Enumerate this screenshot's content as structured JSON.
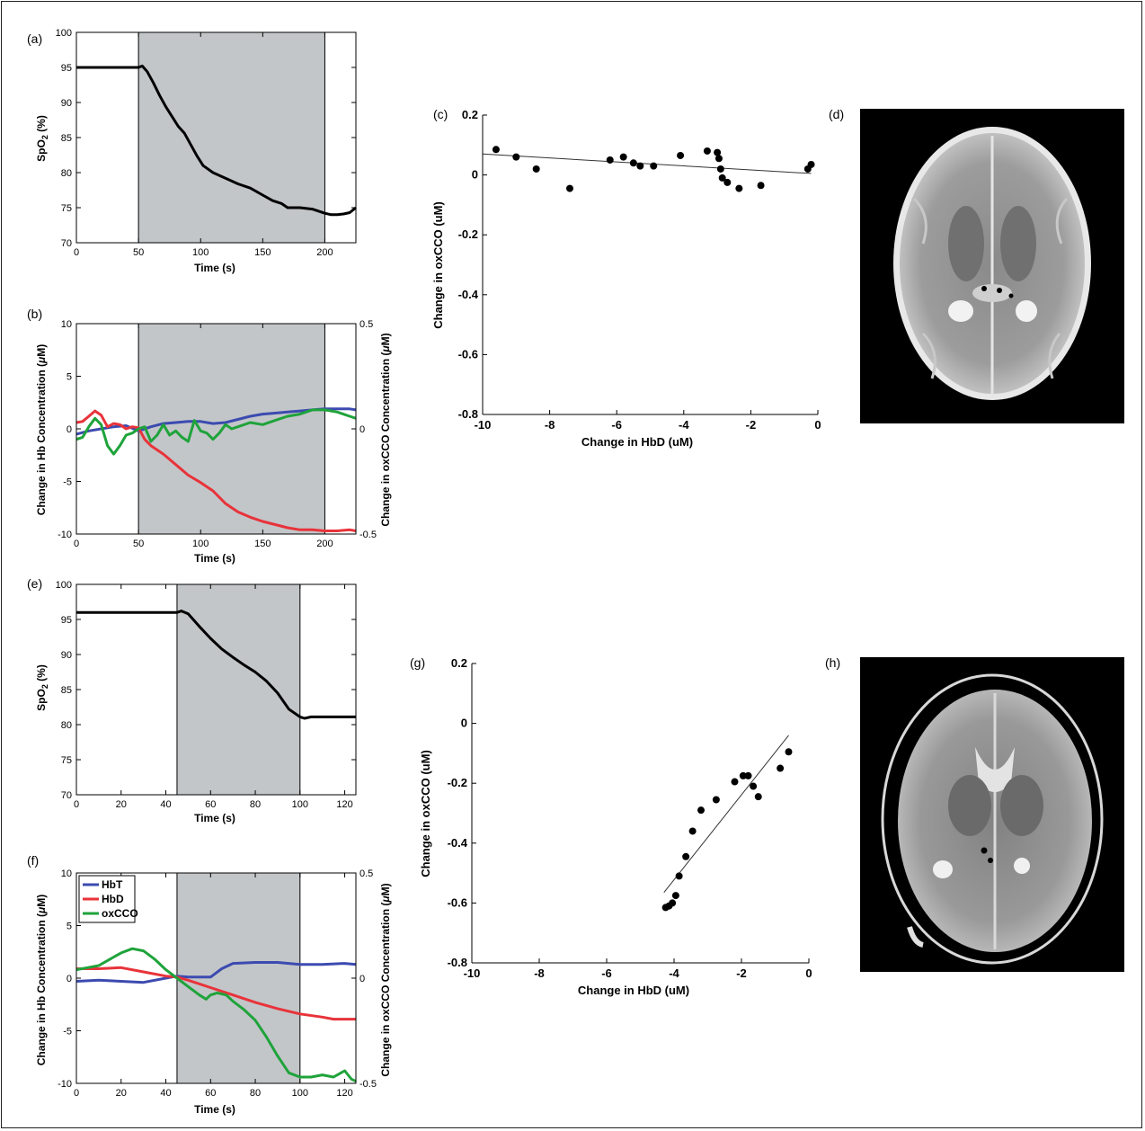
{
  "panels": {
    "a": {
      "letter": "(a)",
      "xlabel": "Time (s)",
      "ylabel_main": "SpO",
      "ylabel_sub": "2",
      "ylabel_tail": " (%)"
    },
    "b": {
      "letter": "(b)",
      "xlabel": "Time (s)",
      "ylabel_left": "Change in Hb Concentration (",
      "ylabel_left_mu": "μ",
      "ylabel_left_tail": "M)",
      "ylabel_right": "Change in oxCCO Concentration (",
      "ylabel_right_mu": "μ",
      "ylabel_right_tail": "M)"
    },
    "c": {
      "letter": "(c)",
      "xlabel": "Change in HbD (uM)",
      "ylabel": "Change in oxCCO (uM)"
    },
    "d": {
      "letter": "(d)"
    },
    "e": {
      "letter": "(e)",
      "xlabel": "Time (s)",
      "ylabel_main": "SpO",
      "ylabel_sub": "2",
      "ylabel_tail": " (%)"
    },
    "f": {
      "letter": "(f)",
      "xlabel": "Time (s)",
      "ylabel_left": "Change in Hb Concentration (",
      "ylabel_left_mu": "μ",
      "ylabel_left_tail": "M)",
      "ylabel_right": "Change in oxCCO Concentration (",
      "ylabel_right_mu": "μ",
      "ylabel_right_tail": "M)"
    },
    "g": {
      "letter": "(g)",
      "xlabel": "Change in HbD (uM)",
      "ylabel": "Change in oxCCO (uM)"
    },
    "h": {
      "letter": "(h)"
    }
  },
  "colors": {
    "HbT": "#3c4bb0",
    "HbD": "#e8333a",
    "oxCCO": "#1fa33b",
    "shade": "#c3c6c9",
    "line": "#000000"
  },
  "chart_data": [
    {
      "id": "a",
      "type": "line",
      "xlim": [
        0,
        225
      ],
      "ylim": [
        70,
        100
      ],
      "xticks": [
        0,
        50,
        100,
        150,
        200
      ],
      "yticks": [
        70,
        75,
        80,
        85,
        90,
        95,
        100
      ],
      "shaded": [
        50,
        200
      ],
      "series": [
        {
          "key": "spo2",
          "color": "#000000",
          "x": [
            0,
            50,
            53,
            57,
            62,
            67,
            72,
            77,
            82,
            87,
            92,
            97,
            102,
            110,
            120,
            130,
            140,
            150,
            158,
            165,
            170,
            180,
            190,
            200,
            205,
            210,
            215,
            220,
            225
          ],
          "y": [
            95,
            95,
            95.2,
            94.4,
            92.8,
            91,
            89.4,
            88,
            86.6,
            85.6,
            84,
            82.4,
            81,
            80,
            79.2,
            78.4,
            77.8,
            76.8,
            76,
            75.6,
            75,
            75,
            74.8,
            74.2,
            74,
            74,
            74.1,
            74.3,
            75
          ]
        }
      ]
    },
    {
      "id": "b",
      "type": "line",
      "xlim": [
        0,
        225
      ],
      "ylim": [
        -10,
        10
      ],
      "y2lim": [
        -0.5,
        0.5
      ],
      "xticks": [
        0,
        50,
        100,
        150,
        200
      ],
      "yticks": [
        -10,
        -5,
        0,
        5,
        10
      ],
      "y2ticks": [
        -0.5,
        0,
        0.5
      ],
      "shaded": [
        50,
        200
      ],
      "series": [
        {
          "key": "HbT",
          "color": "#3c4bb0",
          "x": [
            0,
            10,
            20,
            30,
            40,
            50,
            60,
            70,
            80,
            90,
            100,
            110,
            120,
            130,
            140,
            150,
            160,
            170,
            180,
            190,
            200,
            210,
            220,
            225
          ],
          "y": [
            -0.5,
            -0.2,
            0,
            0.2,
            0.3,
            -0.2,
            0.2,
            0.5,
            0.6,
            0.7,
            0.7,
            0.5,
            0.6,
            0.9,
            1.2,
            1.4,
            1.5,
            1.6,
            1.7,
            1.8,
            1.9,
            1.9,
            1.9,
            1.8
          ]
        },
        {
          "key": "HbD",
          "color": "#e8333a",
          "x": [
            0,
            5,
            10,
            15,
            20,
            25,
            30,
            35,
            40,
            45,
            50,
            55,
            60,
            70,
            80,
            90,
            100,
            110,
            120,
            130,
            140,
            150,
            160,
            170,
            180,
            190,
            200,
            210,
            220,
            225
          ],
          "y": [
            0.6,
            0.7,
            1.2,
            1.7,
            1.3,
            0.2,
            0.5,
            0.4,
            0,
            0.2,
            0.1,
            -1,
            -1.6,
            -2.4,
            -3.4,
            -4.4,
            -5.1,
            -5.9,
            -7.1,
            -7.9,
            -8.4,
            -8.8,
            -9.1,
            -9.4,
            -9.6,
            -9.6,
            -9.7,
            -9.7,
            -9.6,
            -9.7
          ]
        },
        {
          "key": "oxCCO",
          "color": "#1fa33b",
          "x": [
            0,
            5,
            10,
            15,
            20,
            25,
            30,
            35,
            40,
            45,
            50,
            55,
            60,
            65,
            70,
            75,
            80,
            85,
            90,
            95,
            100,
            105,
            110,
            115,
            120,
            125,
            130,
            140,
            150,
            160,
            170,
            180,
            190,
            200,
            210,
            220,
            225
          ],
          "y": [
            -0.05,
            -0.04,
            0.01,
            0.05,
            0.02,
            -0.08,
            -0.12,
            -0.08,
            -0.03,
            -0.02,
            0,
            0.01,
            -0.06,
            -0.03,
            0.02,
            -0.03,
            -0.01,
            -0.04,
            -0.06,
            0.04,
            -0.01,
            -0.02,
            -0.05,
            -0.02,
            0.02,
            0.0,
            0.01,
            0.03,
            0.02,
            0.04,
            0.06,
            0.07,
            0.09,
            0.09,
            0.08,
            0.06,
            0.05
          ]
        }
      ]
    },
    {
      "id": "c",
      "type": "scatter",
      "xlim": [
        -10,
        0
      ],
      "ylim": [
        -0.8,
        0.2
      ],
      "xticks": [
        -10,
        -8,
        -6,
        -4,
        -2,
        0
      ],
      "yticks": [
        -0.8,
        -0.6,
        -0.4,
        -0.2,
        0,
        0.2
      ],
      "points": [
        [
          -9.6,
          0.085
        ],
        [
          -9.0,
          0.06
        ],
        [
          -8.4,
          0.02
        ],
        [
          -7.4,
          -0.045
        ],
        [
          -6.2,
          0.05
        ],
        [
          -5.8,
          0.06
        ],
        [
          -5.5,
          0.04
        ],
        [
          -5.3,
          0.03
        ],
        [
          -4.9,
          0.03
        ],
        [
          -4.1,
          0.065
        ],
        [
          -3.3,
          0.08
        ],
        [
          -3.0,
          0.075
        ],
        [
          -2.95,
          0.055
        ],
        [
          -2.9,
          0.02
        ],
        [
          -2.85,
          -0.01
        ],
        [
          -2.7,
          -0.025
        ],
        [
          -2.35,
          -0.045
        ],
        [
          -1.7,
          -0.035
        ],
        [
          -0.3,
          0.02
        ],
        [
          -0.2,
          0.035
        ]
      ],
      "fit": [
        [
          -10,
          0.07
        ],
        [
          -0.2,
          0.005
        ]
      ]
    },
    {
      "id": "e",
      "type": "line",
      "xlim": [
        0,
        125
      ],
      "ylim": [
        70,
        100
      ],
      "xticks": [
        0,
        20,
        40,
        60,
        80,
        100,
        120
      ],
      "yticks": [
        70,
        75,
        80,
        85,
        90,
        95,
        100
      ],
      "shaded": [
        45,
        100
      ],
      "series": [
        {
          "key": "spo2",
          "color": "#000000",
          "x": [
            0,
            45,
            47,
            50,
            55,
            60,
            65,
            70,
            75,
            80,
            85,
            90,
            95,
            100,
            102,
            105,
            110,
            115,
            120,
            125
          ],
          "y": [
            96,
            96,
            96.2,
            95.8,
            94,
            92.3,
            90.8,
            89.6,
            88.5,
            87.5,
            86.2,
            84.5,
            82.2,
            81.1,
            80.9,
            81.1,
            81.1,
            81.1,
            81.1,
            81.1
          ]
        }
      ]
    },
    {
      "id": "f",
      "type": "line",
      "xlim": [
        0,
        125
      ],
      "ylim": [
        -10,
        10
      ],
      "y2lim": [
        -0.5,
        0.5
      ],
      "xticks": [
        0,
        20,
        40,
        60,
        80,
        100,
        120
      ],
      "yticks": [
        -10,
        -5,
        0,
        5,
        10
      ],
      "y2ticks": [
        -0.5,
        0,
        0.5
      ],
      "shaded": [
        45,
        100
      ],
      "legend": [
        "HbT",
        "HbD",
        "oxCCO"
      ],
      "series": [
        {
          "key": "HbT",
          "color": "#3c4bb0",
          "x": [
            0,
            10,
            20,
            30,
            40,
            45,
            50,
            55,
            60,
            65,
            70,
            80,
            90,
            100,
            110,
            120,
            125
          ],
          "y": [
            -0.3,
            -0.2,
            -0.3,
            -0.4,
            0,
            0.2,
            0.1,
            0.1,
            0.1,
            0.9,
            1.4,
            1.5,
            1.5,
            1.3,
            1.3,
            1.4,
            1.3
          ]
        },
        {
          "key": "HbD",
          "color": "#e8333a",
          "x": [
            0,
            10,
            20,
            30,
            40,
            45,
            50,
            60,
            70,
            80,
            90,
            100,
            110,
            115,
            120,
            125
          ],
          "y": [
            0.9,
            0.9,
            1,
            0.6,
            0.2,
            0.1,
            -0.2,
            -0.9,
            -1.6,
            -2.3,
            -2.9,
            -3.4,
            -3.7,
            -3.9,
            -3.9,
            -3.9
          ]
        },
        {
          "key": "oxCCO",
          "color": "#1fa33b",
          "x": [
            0,
            5,
            10,
            15,
            20,
            25,
            30,
            35,
            40,
            45,
            50,
            55,
            58,
            60,
            63,
            67,
            70,
            75,
            80,
            85,
            90,
            95,
            100,
            105,
            110,
            115,
            120,
            123,
            125
          ],
          "y": [
            0.04,
            0.05,
            0.06,
            0.09,
            0.12,
            0.14,
            0.13,
            0.09,
            0.04,
            0.0,
            -0.04,
            -0.08,
            -0.1,
            -0.08,
            -0.07,
            -0.08,
            -0.11,
            -0.15,
            -0.2,
            -0.28,
            -0.37,
            -0.45,
            -0.47,
            -0.47,
            -0.46,
            -0.47,
            -0.44,
            -0.48,
            -0.49
          ]
        }
      ]
    },
    {
      "id": "g",
      "type": "scatter",
      "xlim": [
        -10,
        0
      ],
      "ylim": [
        -0.8,
        0.2
      ],
      "xticks": [
        -10,
        -8,
        -6,
        -4,
        -2,
        0
      ],
      "yticks": [
        -0.8,
        -0.6,
        -0.4,
        -0.2,
        0,
        0.2
      ],
      "points": [
        [
          -4.25,
          -0.615
        ],
        [
          -4.15,
          -0.61
        ],
        [
          -4.05,
          -0.6
        ],
        [
          -3.95,
          -0.575
        ],
        [
          -3.85,
          -0.51
        ],
        [
          -3.65,
          -0.445
        ],
        [
          -3.45,
          -0.36
        ],
        [
          -3.2,
          -0.29
        ],
        [
          -2.75,
          -0.255
        ],
        [
          -2.2,
          -0.195
        ],
        [
          -1.95,
          -0.175
        ],
        [
          -1.8,
          -0.175
        ],
        [
          -1.65,
          -0.21
        ],
        [
          -1.5,
          -0.245
        ],
        [
          -0.85,
          -0.15
        ],
        [
          -0.6,
          -0.095
        ]
      ],
      "fit": [
        [
          -4.3,
          -0.565
        ],
        [
          -0.6,
          -0.04
        ]
      ]
    }
  ]
}
